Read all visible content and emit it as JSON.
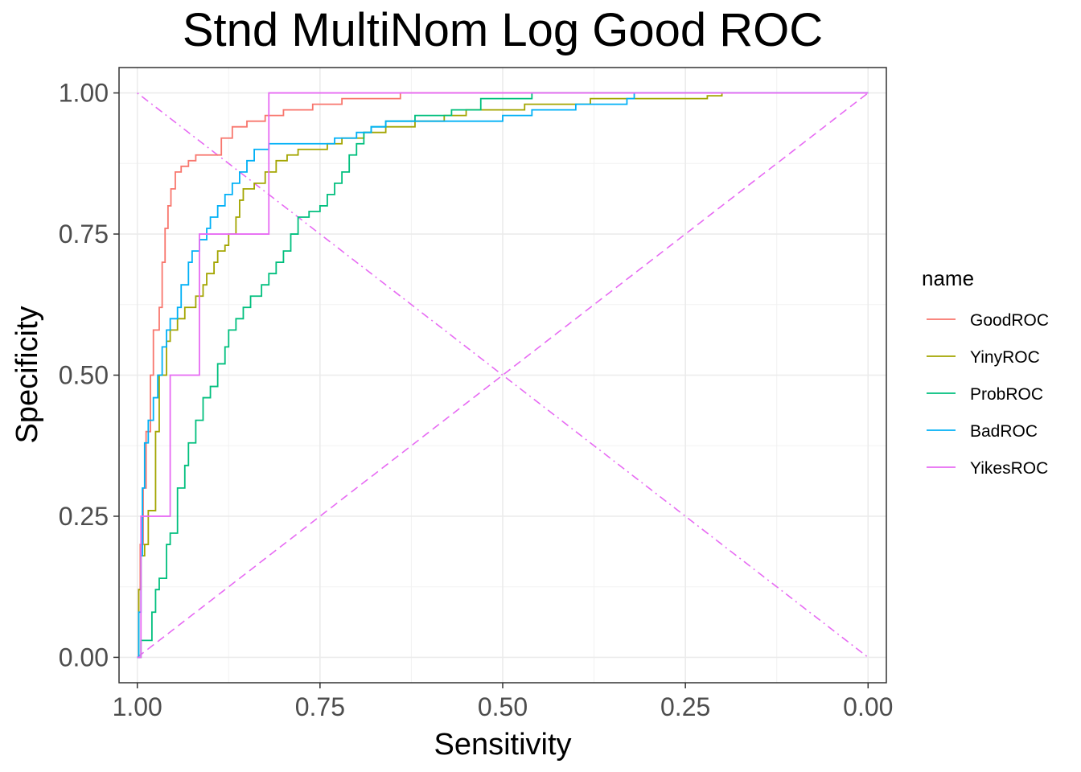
{
  "chart_data": {
    "type": "line",
    "title": "Stnd MultiNom Log Good ROC",
    "xlabel": "Sensitivity",
    "ylabel": "Specificity",
    "x_reversed": true,
    "xlim": [
      1.025,
      -0.025
    ],
    "ylim": [
      -0.045,
      1.045
    ],
    "x_ticks": [
      1.0,
      0.75,
      0.5,
      0.25,
      0.0
    ],
    "x_tick_labels": [
      "1.00",
      "0.75",
      "0.50",
      "0.25",
      "0.00"
    ],
    "y_ticks": [
      0.0,
      0.25,
      0.5,
      0.75,
      1.0
    ],
    "y_tick_labels": [
      "0.00",
      "0.25",
      "0.50",
      "0.75",
      "1.00"
    ],
    "grid": true,
    "legend": {
      "title": "name",
      "position": "right"
    },
    "series": [
      {
        "name": "GoodROC",
        "color": "#F8766D",
        "step": true,
        "points": [
          [
            1.0,
            0.0
          ],
          [
            0.998,
            0.12
          ],
          [
            0.996,
            0.2
          ],
          [
            0.992,
            0.3
          ],
          [
            0.988,
            0.4
          ],
          [
            0.982,
            0.5
          ],
          [
            0.978,
            0.58
          ],
          [
            0.97,
            0.62
          ],
          [
            0.966,
            0.7
          ],
          [
            0.962,
            0.76
          ],
          [
            0.958,
            0.8
          ],
          [
            0.954,
            0.83
          ],
          [
            0.948,
            0.86
          ],
          [
            0.94,
            0.87
          ],
          [
            0.93,
            0.88
          ],
          [
            0.92,
            0.89
          ],
          [
            0.9,
            0.89
          ],
          [
            0.885,
            0.92
          ],
          [
            0.87,
            0.94
          ],
          [
            0.85,
            0.95
          ],
          [
            0.825,
            0.96
          ],
          [
            0.8,
            0.97
          ],
          [
            0.76,
            0.98
          ],
          [
            0.72,
            0.99
          ],
          [
            0.64,
            1.0
          ],
          [
            0.0,
            1.0
          ]
        ]
      },
      {
        "name": "YinyROC",
        "color": "#A3A500",
        "step": true,
        "points": [
          [
            1.0,
            0.0
          ],
          [
            0.998,
            0.12
          ],
          [
            0.995,
            0.18
          ],
          [
            0.99,
            0.2
          ],
          [
            0.985,
            0.26
          ],
          [
            0.975,
            0.4
          ],
          [
            0.97,
            0.5
          ],
          [
            0.96,
            0.56
          ],
          [
            0.955,
            0.58
          ],
          [
            0.945,
            0.6
          ],
          [
            0.935,
            0.62
          ],
          [
            0.92,
            0.64
          ],
          [
            0.91,
            0.66
          ],
          [
            0.905,
            0.68
          ],
          [
            0.895,
            0.7
          ],
          [
            0.89,
            0.72
          ],
          [
            0.88,
            0.73
          ],
          [
            0.875,
            0.75
          ],
          [
            0.865,
            0.78
          ],
          [
            0.86,
            0.81
          ],
          [
            0.855,
            0.83
          ],
          [
            0.84,
            0.84
          ],
          [
            0.825,
            0.86
          ],
          [
            0.81,
            0.88
          ],
          [
            0.795,
            0.89
          ],
          [
            0.78,
            0.9
          ],
          [
            0.76,
            0.9
          ],
          [
            0.74,
            0.91
          ],
          [
            0.72,
            0.92
          ],
          [
            0.69,
            0.93
          ],
          [
            0.66,
            0.94
          ],
          [
            0.62,
            0.95
          ],
          [
            0.58,
            0.96
          ],
          [
            0.55,
            0.97
          ],
          [
            0.5,
            0.97
          ],
          [
            0.47,
            0.98
          ],
          [
            0.44,
            0.98
          ],
          [
            0.38,
            0.99
          ],
          [
            0.3,
            0.99
          ],
          [
            0.25,
            0.99
          ],
          [
            0.22,
            0.995
          ],
          [
            0.2,
            1.0
          ],
          [
            0.0,
            1.0
          ]
        ]
      },
      {
        "name": "ProbROC",
        "color": "#00BF7D",
        "step": true,
        "points": [
          [
            1.0,
            0.0
          ],
          [
            0.995,
            0.03
          ],
          [
            0.985,
            0.03
          ],
          [
            0.98,
            0.08
          ],
          [
            0.975,
            0.12
          ],
          [
            0.97,
            0.14
          ],
          [
            0.96,
            0.2
          ],
          [
            0.955,
            0.22
          ],
          [
            0.945,
            0.3
          ],
          [
            0.935,
            0.34
          ],
          [
            0.93,
            0.38
          ],
          [
            0.92,
            0.42
          ],
          [
            0.91,
            0.46
          ],
          [
            0.9,
            0.48
          ],
          [
            0.89,
            0.52
          ],
          [
            0.88,
            0.55
          ],
          [
            0.875,
            0.58
          ],
          [
            0.865,
            0.6
          ],
          [
            0.855,
            0.62
          ],
          [
            0.845,
            0.64
          ],
          [
            0.83,
            0.66
          ],
          [
            0.82,
            0.68
          ],
          [
            0.81,
            0.7
          ],
          [
            0.8,
            0.72
          ],
          [
            0.79,
            0.75
          ],
          [
            0.78,
            0.78
          ],
          [
            0.765,
            0.79
          ],
          [
            0.75,
            0.8
          ],
          [
            0.74,
            0.82
          ],
          [
            0.73,
            0.84
          ],
          [
            0.72,
            0.86
          ],
          [
            0.71,
            0.89
          ],
          [
            0.7,
            0.91
          ],
          [
            0.69,
            0.93
          ],
          [
            0.68,
            0.94
          ],
          [
            0.66,
            0.95
          ],
          [
            0.62,
            0.96
          ],
          [
            0.57,
            0.97
          ],
          [
            0.53,
            0.99
          ],
          [
            0.46,
            1.0
          ],
          [
            0.0,
            1.0
          ]
        ]
      },
      {
        "name": "BadROC",
        "color": "#00B0F6",
        "step": true,
        "points": [
          [
            1.0,
            0.0
          ],
          [
            0.998,
            0.08
          ],
          [
            0.995,
            0.18
          ],
          [
            0.993,
            0.3
          ],
          [
            0.99,
            0.38
          ],
          [
            0.985,
            0.42
          ],
          [
            0.978,
            0.46
          ],
          [
            0.972,
            0.5
          ],
          [
            0.966,
            0.55
          ],
          [
            0.96,
            0.58
          ],
          [
            0.955,
            0.6
          ],
          [
            0.945,
            0.62
          ],
          [
            0.94,
            0.66
          ],
          [
            0.93,
            0.7
          ],
          [
            0.925,
            0.72
          ],
          [
            0.915,
            0.74
          ],
          [
            0.905,
            0.76
          ],
          [
            0.9,
            0.78
          ],
          [
            0.89,
            0.8
          ],
          [
            0.88,
            0.82
          ],
          [
            0.87,
            0.84
          ],
          [
            0.86,
            0.86
          ],
          [
            0.85,
            0.88
          ],
          [
            0.84,
            0.9
          ],
          [
            0.82,
            0.91
          ],
          [
            0.78,
            0.91
          ],
          [
            0.73,
            0.92
          ],
          [
            0.7,
            0.93
          ],
          [
            0.68,
            0.94
          ],
          [
            0.66,
            0.95
          ],
          [
            0.6,
            0.95
          ],
          [
            0.5,
            0.96
          ],
          [
            0.46,
            0.97
          ],
          [
            0.4,
            0.98
          ],
          [
            0.33,
            0.99
          ],
          [
            0.32,
            1.0
          ],
          [
            0.0,
            1.0
          ]
        ]
      },
      {
        "name": "YikesROC",
        "color": "#E76BF3",
        "step": true,
        "points": [
          [
            1.0,
            0.0
          ],
          [
            0.995,
            0.25
          ],
          [
            0.96,
            0.25
          ],
          [
            0.955,
            0.5
          ],
          [
            0.92,
            0.5
          ],
          [
            0.915,
            0.75
          ],
          [
            0.825,
            0.75
          ],
          [
            0.82,
            1.0
          ],
          [
            0.0,
            1.0
          ]
        ]
      }
    ],
    "reference_lines": [
      {
        "color": "#E76BF3",
        "dash": "dashed",
        "points": [
          [
            1.0,
            0.0
          ],
          [
            0.0,
            1.0
          ]
        ]
      },
      {
        "color": "#E76BF3",
        "dash": "dotdash",
        "points": [
          [
            1.0,
            1.0
          ],
          [
            0.0,
            0.0
          ]
        ]
      }
    ]
  }
}
